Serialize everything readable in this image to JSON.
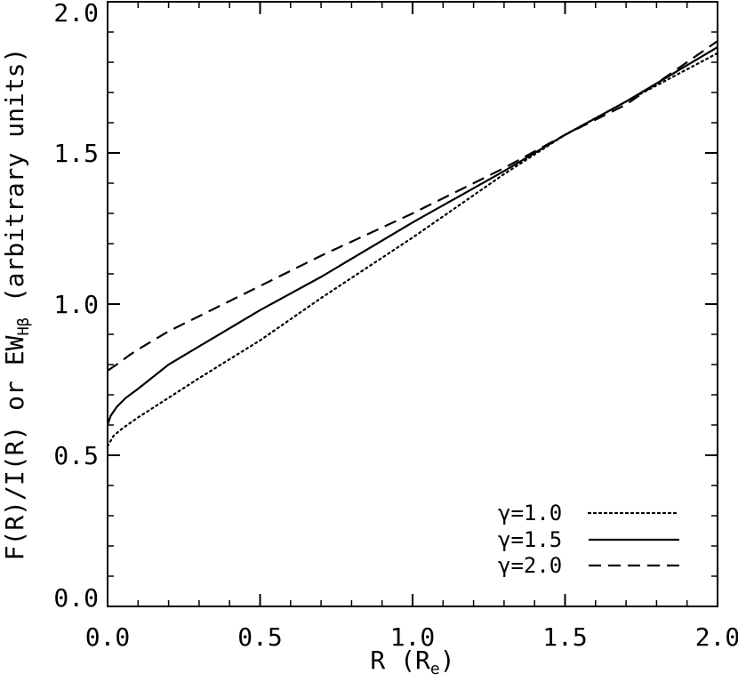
{
  "chart_data": {
    "type": "line",
    "title": "",
    "xlabel": "R (R",
    "xlabel_sub": "e",
    "xlabel_close": ")",
    "ylabel": "F(R)/I(R) or EW",
    "ylabel_sub": "Hβ",
    "ylabel_suffix": " (arbitrary units)",
    "xlim": [
      0.0,
      2.0
    ],
    "ylim": [
      0.0,
      2.0
    ],
    "xticks": [
      "0.0",
      "0.5",
      "1.0",
      "1.5",
      "2.0"
    ],
    "yticks": [
      "0.0",
      "0.5",
      "1.0",
      "1.5",
      "2.0"
    ],
    "grid": false,
    "legend_position": "bottom-right",
    "series": [
      {
        "name": "γ=1.0",
        "style": "dotted",
        "x": [
          0.0,
          0.02,
          0.05,
          0.1,
          0.2,
          0.3,
          0.5,
          0.7,
          1.0,
          1.3,
          1.5,
          1.7,
          2.0
        ],
        "y": [
          0.53,
          0.565,
          0.59,
          0.625,
          0.69,
          0.755,
          0.88,
          1.02,
          1.22,
          1.43,
          1.56,
          1.67,
          1.83
        ]
      },
      {
        "name": "γ=1.5",
        "style": "solid",
        "x": [
          0.0,
          0.01,
          0.03,
          0.06,
          0.1,
          0.2,
          0.3,
          0.5,
          0.7,
          1.0,
          1.3,
          1.5,
          1.7,
          2.0
        ],
        "y": [
          0.6,
          0.63,
          0.66,
          0.69,
          0.72,
          0.8,
          0.86,
          0.98,
          1.09,
          1.27,
          1.44,
          1.56,
          1.67,
          1.85
        ]
      },
      {
        "name": "γ=2.0",
        "style": "dashed",
        "x": [
          0.0,
          0.03,
          0.07,
          0.1,
          0.2,
          0.3,
          0.5,
          0.7,
          1.0,
          1.3,
          1.5,
          1.7,
          2.0
        ],
        "y": [
          0.78,
          0.8,
          0.83,
          0.85,
          0.91,
          0.96,
          1.06,
          1.16,
          1.3,
          1.45,
          1.56,
          1.66,
          1.87
        ]
      }
    ]
  }
}
